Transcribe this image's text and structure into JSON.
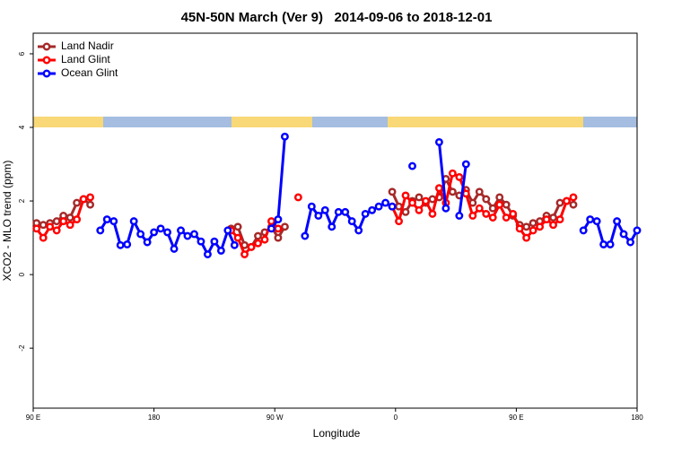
{
  "chart_data": {
    "type": "line",
    "title": "45N-50N March (Ver 9)   2014-09-06 to 2018-12-01",
    "x_label": "Longitude",
    "y_label": "XCO2 - MLO trend (ppm)",
    "xlim": [
      90,
      540
    ],
    "ylim": [
      -3.63,
      6.56
    ],
    "xticks": [
      {
        "value": 90,
        "label": "90 E"
      },
      {
        "value": 180,
        "label": "180"
      },
      {
        "value": 270,
        "label": "90 W"
      },
      {
        "value": 360,
        "label": "0"
      },
      {
        "value": 450,
        "label": "90 E"
      },
      {
        "value": 540,
        "label": "180"
      }
    ],
    "yticks": [
      -2,
      0,
      2,
      4,
      6
    ],
    "legend": "top-left",
    "series": [
      {
        "name": "Land Nadir",
        "color": "#a52a2a",
        "x": [
          92.5,
          97.5,
          102.5,
          107.5,
          112.5,
          117.5,
          122.5,
          127.5,
          132.5,
          137.5,
          237.5,
          242.5,
          247.5,
          252.5,
          257.5,
          262.5,
          267.5,
          272.5,
          277.5,
          282.5,
          357.5,
          362.5,
          367.5,
          372.5,
          377.5,
          382.5,
          387.5,
          392.5,
          397.5,
          402.5,
          407.5,
          412.5,
          417.5,
          422.5,
          427.5,
          432.5,
          437.5,
          442.5,
          447.5,
          452.5,
          457.5,
          462.5,
          467.5,
          472.5,
          477.5,
          482.5,
          487.5,
          492.5
        ],
        "values": [
          1.4,
          1.35,
          1.4,
          1.45,
          1.6,
          1.55,
          1.95,
          2.05,
          1.9,
          null,
          1.25,
          1.3,
          0.8,
          0.75,
          1.05,
          1.15,
          1.3,
          1.0,
          1.3,
          null,
          2.25,
          1.85,
          1.7,
          2.0,
          2.1,
          1.95,
          2.05,
          2.1,
          2.6,
          2.25,
          2.15,
          2.3,
          1.95,
          2.25,
          2.05,
          1.8,
          2.1,
          1.9,
          1.6,
          1.35,
          1.3,
          1.4,
          1.45,
          1.6,
          1.55,
          1.95,
          2.0,
          1.9
        ]
      },
      {
        "name": "Land Glint",
        "color": "#ff0000",
        "x": [
          92.5,
          97.5,
          102.5,
          107.5,
          112.5,
          117.5,
          122.5,
          127.5,
          132.5,
          137.5,
          237.5,
          242.5,
          247.5,
          252.5,
          257.5,
          262.5,
          267.5,
          272.5,
          277.5,
          287.5,
          292.5,
          357.5,
          362.5,
          367.5,
          372.5,
          377.5,
          382.5,
          387.5,
          392.5,
          397.5,
          402.5,
          407.5,
          412.5,
          417.5,
          422.5,
          427.5,
          432.5,
          437.5,
          442.5,
          447.5,
          452.5,
          457.5,
          462.5,
          467.5,
          472.5,
          477.5,
          482.5,
          487.5,
          492.5
        ],
        "values": [
          1.25,
          1.0,
          1.3,
          1.2,
          1.45,
          1.35,
          1.5,
          2.05,
          2.1,
          null,
          1.2,
          1.0,
          0.55,
          0.75,
          0.85,
          0.95,
          1.45,
          1.25,
          null,
          2.1,
          null,
          1.85,
          1.45,
          2.15,
          1.95,
          1.75,
          2.0,
          1.65,
          2.35,
          1.95,
          2.75,
          2.65,
          2.2,
          1.6,
          1.8,
          1.65,
          1.55,
          1.9,
          1.55,
          1.65,
          1.25,
          1.0,
          1.2,
          1.3,
          1.5,
          1.35,
          1.5,
          2.0,
          2.1
        ]
      },
      {
        "name": "Ocean Glint",
        "color": "#0000ff",
        "x": [
          140,
          145,
          150,
          155,
          160,
          165,
          170,
          175,
          180,
          185,
          190,
          195,
          200,
          205,
          210,
          215,
          220,
          225,
          230,
          235,
          240,
          245,
          267.5,
          272.5,
          277.5,
          282.5,
          292.5,
          297.5,
          302.5,
          307.5,
          312.5,
          317.5,
          322.5,
          327.5,
          332.5,
          337.5,
          342.5,
          347.5,
          352.5,
          357.5,
          365,
          372.5,
          377.5,
          392.5,
          397.5,
          402.5,
          407.5,
          412.5,
          417.5,
          500,
          505,
          510,
          515,
          520,
          525,
          530,
          535,
          540
        ],
        "values": [
          1.2,
          1.5,
          1.45,
          0.8,
          0.82,
          1.45,
          1.1,
          0.88,
          1.15,
          1.25,
          1.15,
          0.7,
          1.2,
          1.05,
          1.1,
          0.9,
          0.55,
          0.9,
          0.65,
          1.2,
          0.8,
          null,
          1.25,
          1.5,
          3.75,
          null,
          1.05,
          1.85,
          1.6,
          1.75,
          1.3,
          1.7,
          1.7,
          1.45,
          1.2,
          1.65,
          1.75,
          1.85,
          1.95,
          1.85,
          null,
          2.95,
          null,
          3.6,
          1.8,
          null,
          1.6,
          3.0,
          null,
          1.2,
          1.5,
          1.45,
          0.82,
          0.82,
          1.45,
          1.1,
          0.88,
          1.2
        ]
      }
    ]
  }
}
